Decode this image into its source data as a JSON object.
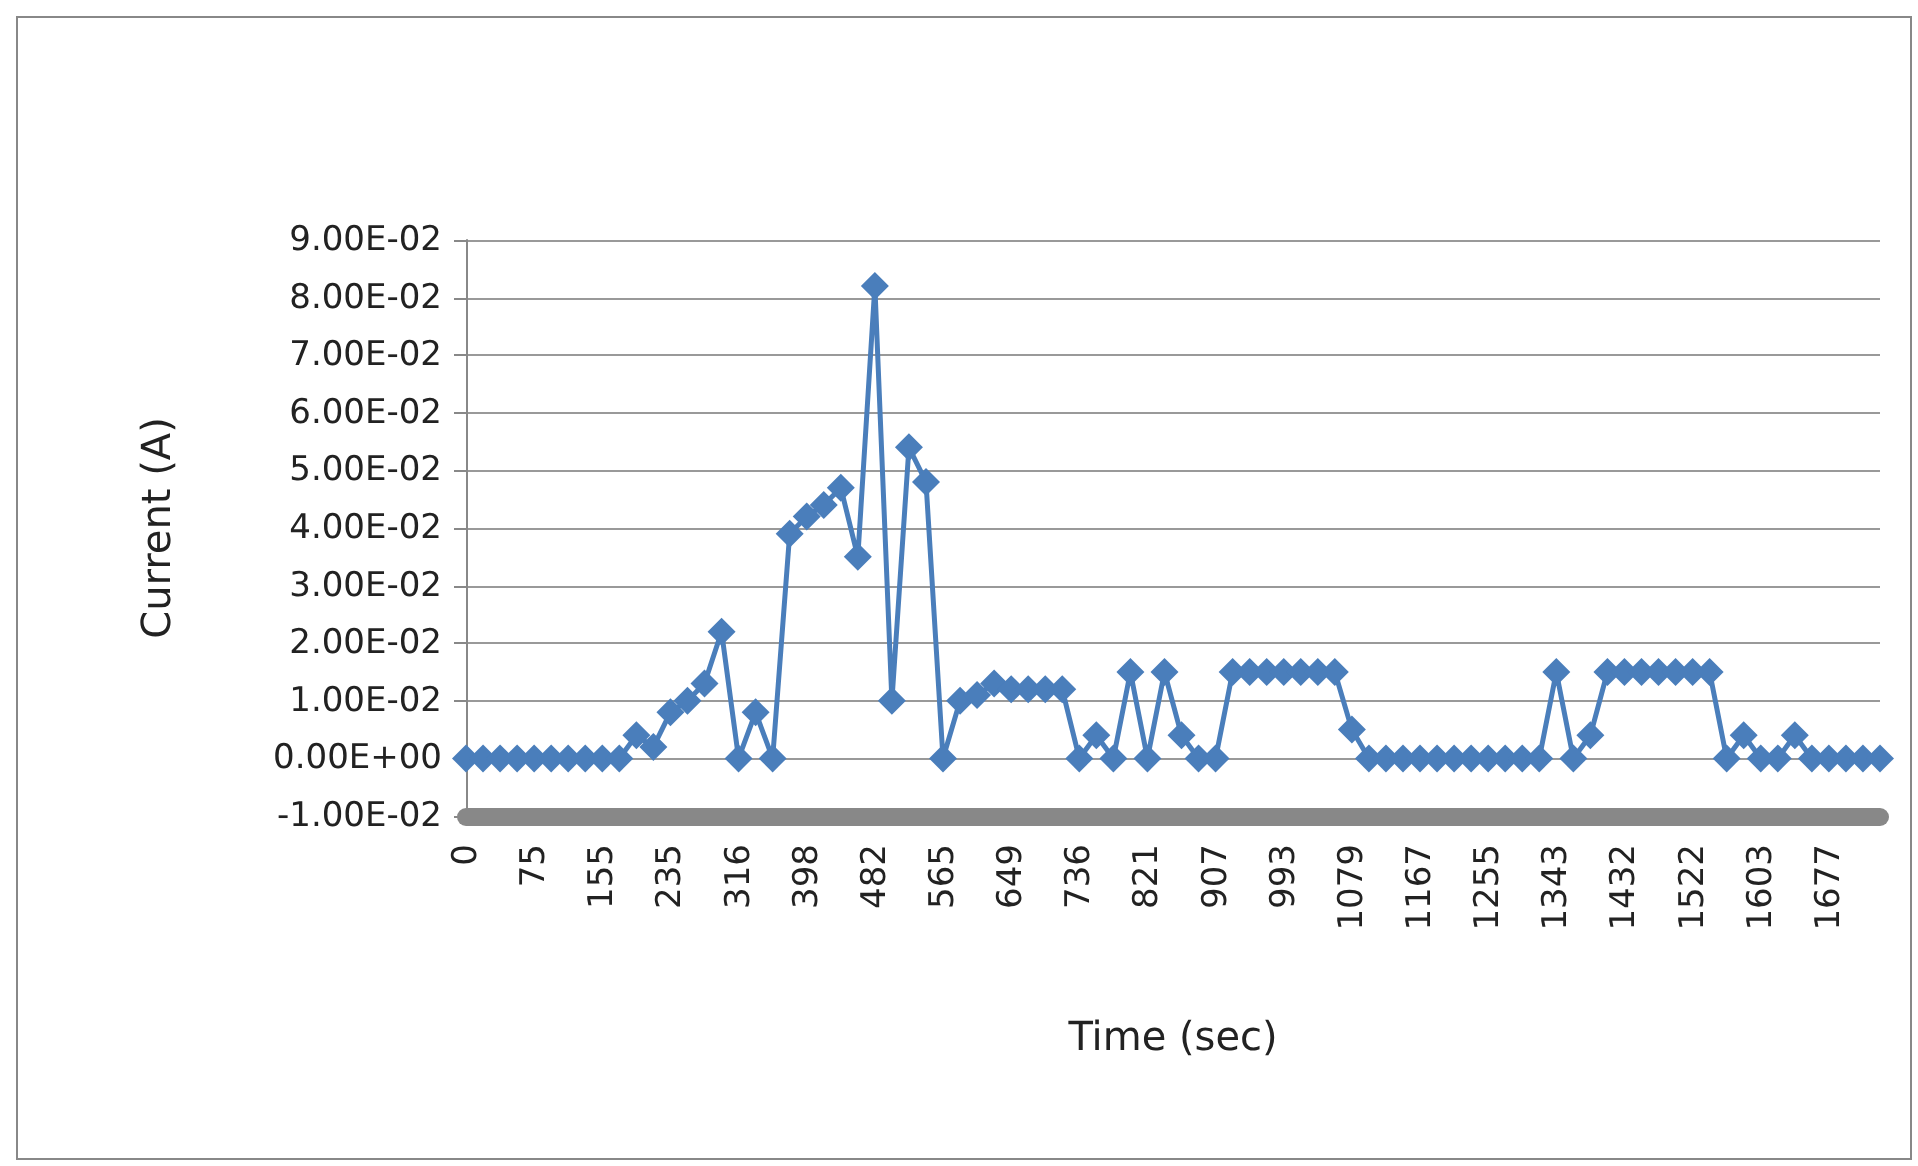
{
  "chart_data": {
    "type": "line",
    "xlabel": "Time (sec)",
    "ylabel": "Current (A)",
    "categories": [
      "0",
      null,
      null,
      null,
      "75",
      null,
      null,
      null,
      "155",
      null,
      null,
      null,
      "235",
      null,
      null,
      null,
      "316",
      null,
      null,
      null,
      "398",
      null,
      null,
      null,
      "482",
      null,
      null,
      null,
      "565",
      null,
      null,
      null,
      "649",
      null,
      null,
      null,
      "736",
      null,
      null,
      null,
      "821",
      null,
      null,
      null,
      "907",
      null,
      null,
      null,
      "993",
      null,
      null,
      null,
      "1079",
      null,
      null,
      null,
      "1167",
      null,
      null,
      null,
      "1255",
      null,
      null,
      null,
      "1343",
      null,
      null,
      null,
      "1432",
      null,
      null,
      null,
      "1522",
      null,
      null,
      null,
      "1603",
      null,
      null,
      null,
      "1677",
      null,
      null,
      null
    ],
    "series": [
      {
        "color": "#4a7ebb",
        "values": [
          0,
          0,
          0,
          0,
          0,
          0,
          0,
          0,
          0,
          0,
          0.004,
          0.002,
          0.008,
          0.01,
          0.013,
          0.022,
          0,
          0.008,
          0,
          0.039,
          0.042,
          0.044,
          0.047,
          0.035,
          0.082,
          0.01,
          0.054,
          0.048,
          0,
          0.01,
          0.011,
          0.013,
          0.012,
          0.012,
          0.012,
          0.012,
          0,
          0.004,
          0,
          0.015,
          0,
          0.015,
          0.004,
          0,
          0,
          0.015,
          0.015,
          0.015,
          0.015,
          0.015,
          0.015,
          0.015,
          0.005,
          0,
          0,
          0,
          0,
          0,
          0,
          0,
          0,
          0,
          0,
          0,
          0.015,
          0,
          0.004,
          0.015,
          0.015,
          0.015,
          0.015,
          0.015,
          0.015,
          0.015,
          0,
          0.004,
          0,
          0,
          0.004,
          0,
          0,
          0,
          0,
          0
        ]
      }
    ],
    "ylim": [
      -0.01,
      0.09
    ],
    "yticks": [
      {
        "value": -0.01,
        "label": "-1.00E-02"
      },
      {
        "value": 0,
        "label": "0.00E+00"
      },
      {
        "value": 0.01,
        "label": "1.00E-02"
      },
      {
        "value": 0.02,
        "label": "2.00E-02"
      },
      {
        "value": 0.03,
        "label": "3.00E-02"
      },
      {
        "value": 0.04,
        "label": "4.00E-02"
      },
      {
        "value": 0.05,
        "label": "5.00E-02"
      },
      {
        "value": 0.06,
        "label": "6.00E-02"
      },
      {
        "value": 0.07,
        "label": "7.00E-02"
      },
      {
        "value": 0.08,
        "label": "8.00E-02"
      },
      {
        "value": 0.09,
        "label": "9.00E-02"
      }
    ],
    "grid": "y",
    "marker": "diamond",
    "line_style": "solid"
  }
}
